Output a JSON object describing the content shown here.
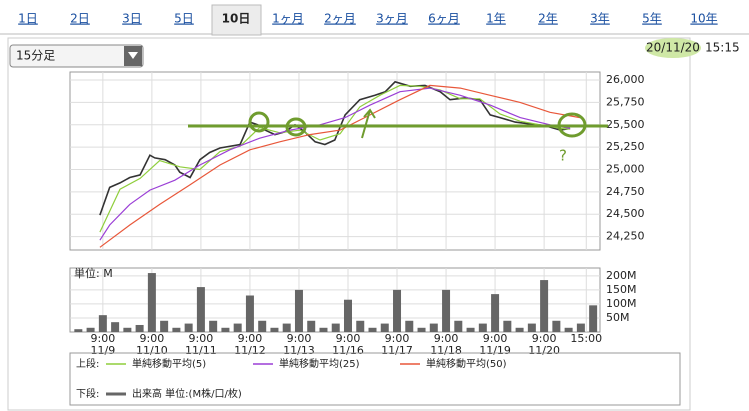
{
  "tabs": [
    "1日",
    "2日",
    "3日",
    "5日",
    "10日",
    "1ヶ月",
    "2ヶ月",
    "3ヶ月",
    "6ヶ月",
    "1年",
    "2年",
    "3年",
    "5年",
    "10年"
  ],
  "active_tab": 4,
  "interval_select": "15分足",
  "timestamp": {
    "date": "20/11/20",
    "time": "15:15"
  },
  "annotation": "?",
  "chart_data": [
    {
      "type": "line",
      "legend_prefix": "上段:",
      "xlim": [
        -0.67,
        10.14
      ],
      "ylim": [
        24100,
        26090
      ],
      "yticks": [
        {
          "value": 24250,
          "label": "24,250"
        },
        {
          "value": 24500,
          "label": "24,500"
        },
        {
          "value": 24750,
          "label": "24,750"
        },
        {
          "value": 25000,
          "label": "25,000"
        },
        {
          "value": 25250,
          "label": "25,250"
        },
        {
          "value": 25500,
          "label": "25,500"
        },
        {
          "value": 25750,
          "label": "25,750"
        },
        {
          "value": 26000,
          "label": "26,000"
        }
      ],
      "grid": true,
      "series": [
        {
          "color": "#333333",
          "x": [
            -0.06,
            0.14,
            0.35,
            0.55,
            0.76,
            0.96,
            1.06,
            1.27,
            1.47,
            1.57,
            1.78,
            1.98,
            2.18,
            2.39,
            2.8,
            3.0,
            3.16,
            3.31,
            3.51,
            3.71,
            3.92,
            4.12,
            4.33,
            4.53,
            4.73,
            4.94,
            5.24,
            5.55,
            5.76,
            5.96,
            6.27,
            6.57,
            6.88,
            7.08,
            7.39,
            7.69,
            7.9,
            8.1,
            8.41,
            8.71,
            9.02,
            9.33,
            9.53
          ],
          "values": [
            24490,
            24800,
            24850,
            24910,
            24940,
            25160,
            25130,
            25110,
            25050,
            24970,
            24910,
            25110,
            25190,
            25240,
            25280,
            25530,
            25500,
            25440,
            25390,
            25420,
            25500,
            25420,
            25310,
            25280,
            25330,
            25610,
            25780,
            25830,
            25870,
            25980,
            25930,
            25940,
            25870,
            25780,
            25800,
            25780,
            25610,
            25580,
            25530,
            25510,
            25490,
            25440,
            25460
          ]
        },
        {
          "name": "単純移動平均(5)",
          "color": "#8fce3c",
          "x": [
            -0.06,
            0.35,
            0.76,
            1.16,
            1.57,
            1.98,
            2.39,
            2.8,
            3.2,
            3.61,
            4.02,
            4.43,
            4.84,
            5.24,
            5.65,
            6.06,
            6.47,
            6.88,
            7.29,
            7.69,
            8.1,
            8.51,
            8.92,
            9.33,
            9.53
          ],
          "values": [
            24300,
            24780,
            24900,
            25100,
            25030,
            25000,
            25200,
            25260,
            25470,
            25410,
            25440,
            25330,
            25400,
            25700,
            25830,
            25940,
            25930,
            25890,
            25790,
            25790,
            25620,
            25540,
            25500,
            25460,
            25450
          ]
        },
        {
          "name": "単純移動平均(25)",
          "color": "#9b3fd6",
          "x": [
            -0.06,
            0.14,
            0.55,
            0.96,
            1.47,
            1.98,
            2.59,
            3.2,
            3.82,
            4.43,
            4.94,
            5.45,
            6.06,
            6.67,
            7.29,
            7.9,
            8.51,
            9.12,
            9.53
          ],
          "values": [
            24210,
            24380,
            24610,
            24770,
            24880,
            25050,
            25220,
            25350,
            25440,
            25500,
            25580,
            25720,
            25870,
            25910,
            25830,
            25720,
            25580,
            25500,
            25460
          ]
        },
        {
          "name": "単純移動平均(50)",
          "color": "#e8573a",
          "x": [
            -0.06,
            0.55,
            1.16,
            1.78,
            2.39,
            3.0,
            3.61,
            4.22,
            4.84,
            5.45,
            6.06,
            6.67,
            7.29,
            7.9,
            8.51,
            9.12,
            9.73
          ],
          "values": [
            24130,
            24380,
            24610,
            24830,
            25050,
            25220,
            25310,
            25390,
            25440,
            25610,
            25780,
            25940,
            25910,
            25830,
            25750,
            25640,
            25580
          ]
        }
      ]
    },
    {
      "type": "bar",
      "unit_label": "単位: M",
      "legend_prefix": "下段:",
      "xlim": [
        -0.67,
        10.14
      ],
      "ylim": [
        0,
        228
      ],
      "yticks": [
        {
          "value": 50,
          "label": "50M"
        },
        {
          "value": 100,
          "label": "100M"
        },
        {
          "value": 150,
          "label": "150M"
        },
        {
          "value": 200,
          "label": "200M"
        }
      ],
      "xticks": [
        {
          "value": 0,
          "label": "9:00",
          "date": "11/9"
        },
        {
          "value": 1,
          "label": "9:00",
          "date": "11/10"
        },
        {
          "value": 2,
          "label": "9:00",
          "date": "11/11"
        },
        {
          "value": 3,
          "label": "9:00",
          "date": "11/12"
        },
        {
          "value": 4,
          "label": "9:00",
          "date": "11/13"
        },
        {
          "value": 5,
          "label": "9:00",
          "date": "11/16"
        },
        {
          "value": 6,
          "label": "9:00",
          "date": "11/17"
        },
        {
          "value": 7,
          "label": "9:00",
          "date": "11/18"
        },
        {
          "value": 8,
          "label": "9:00",
          "date": "11/19"
        },
        {
          "value": 9,
          "label": "9:00",
          "date": "11/20"
        },
        {
          "value": 9.86,
          "label": "15:00"
        }
      ],
      "grid": true,
      "series": [
        {
          "name": "出来高 単位:(M株/口/枚)",
          "color": "#666666",
          "x": [
            -0.5,
            -0.25,
            0,
            0.25,
            0.5,
            0.75,
            1,
            1.25,
            1.5,
            1.75,
            2,
            2.25,
            2.5,
            2.75,
            3,
            3.25,
            3.5,
            3.75,
            4,
            4.25,
            4.5,
            4.75,
            5,
            5.25,
            5.5,
            5.75,
            6,
            6.25,
            6.5,
            6.75,
            7,
            7.25,
            7.5,
            7.75,
            8,
            8.25,
            8.5,
            8.75,
            9,
            9.25,
            9.5,
            9.75,
            10
          ],
          "values": [
            10,
            15,
            60,
            35,
            15,
            25,
            210,
            40,
            15,
            30,
            160,
            40,
            15,
            30,
            130,
            40,
            15,
            30,
            150,
            40,
            15,
            30,
            115,
            40,
            15,
            30,
            150,
            40,
            15,
            30,
            150,
            40,
            15,
            30,
            135,
            40,
            15,
            30,
            185,
            40,
            15,
            30,
            95
          ]
        }
      ]
    }
  ]
}
